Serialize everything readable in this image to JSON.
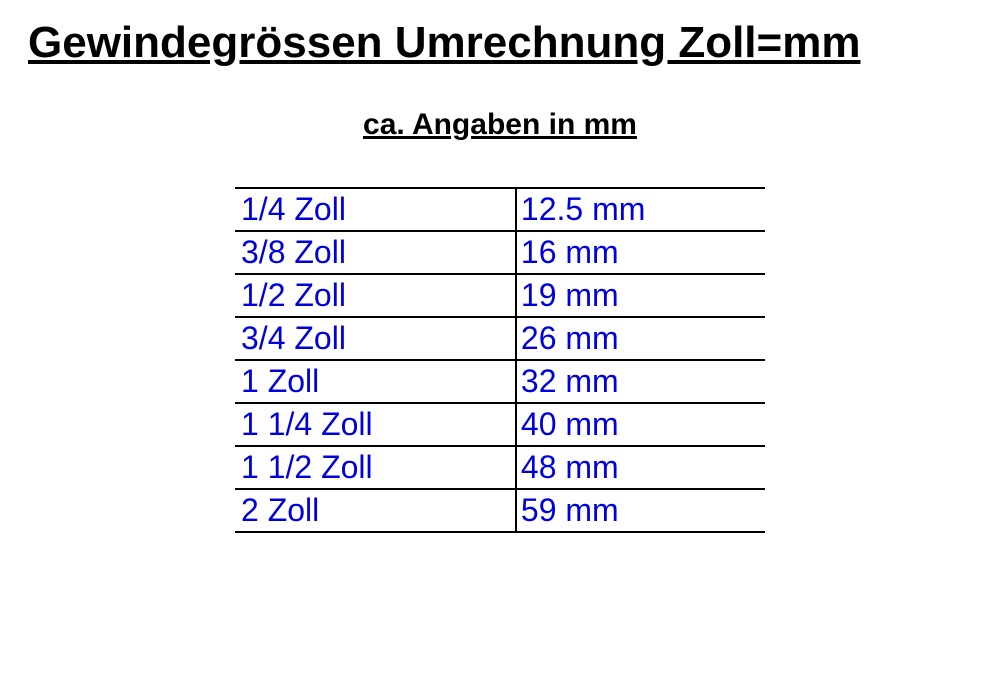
{
  "title": "Gewindegrössen Umrechnung Zoll=mm",
  "subtitle": "ca. Angaben in mm",
  "table": {
    "type": "table",
    "columns": [
      "zoll",
      "mm"
    ],
    "rows": [
      {
        "zoll": "1/4 Zoll",
        "mm": "12.5 mm"
      },
      {
        "zoll": "3/8 Zoll",
        "mm": "16 mm"
      },
      {
        "zoll": "1/2 Zoll",
        "mm": "19 mm"
      },
      {
        "zoll": "3/4 Zoll",
        "mm": "26 mm"
      },
      {
        "zoll": "1 Zoll",
        "mm": "32 mm"
      },
      {
        "zoll": "1 1/4 Zoll",
        "mm": "40 mm"
      },
      {
        "zoll": "1 1/2 Zoll",
        "mm": "48 mm"
      },
      {
        "zoll": "2 Zoll",
        "mm": "59 mm"
      }
    ],
    "text_color": "#0000dd",
    "border_color": "#000000",
    "background_color": "#ffffff",
    "cell_fontsize": 32,
    "border_width": 2
  },
  "title_fontsize": 44,
  "subtitle_fontsize": 30,
  "title_color": "#000000",
  "subtitle_color": "#000000"
}
